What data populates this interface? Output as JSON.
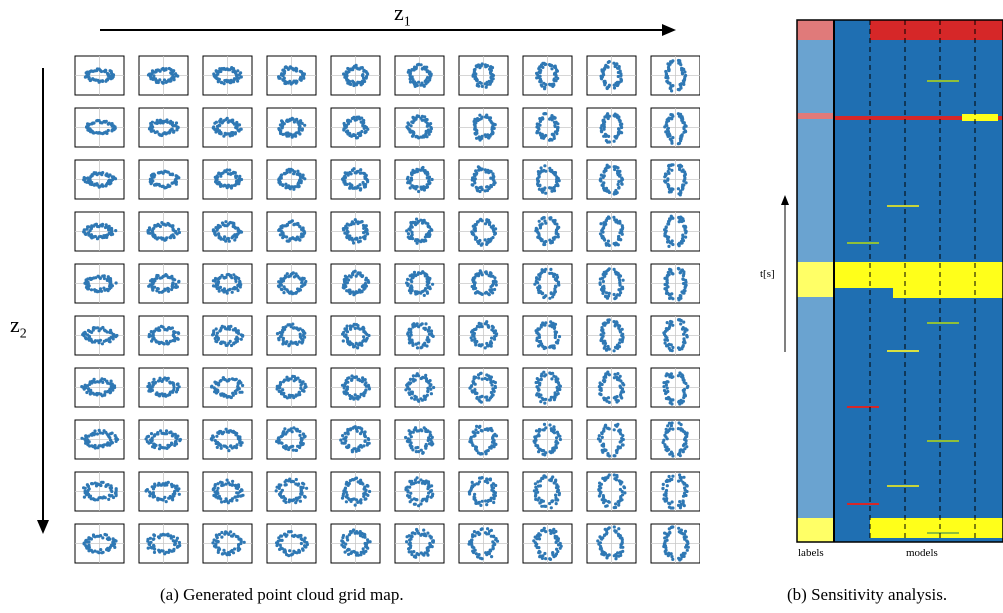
{
  "figure_a": {
    "x_axis_label": "z",
    "x_axis_sub": "1",
    "y_axis_label": "z",
    "y_axis_sub": "2",
    "grid_rows": 10,
    "grid_cols": 10,
    "caption": "(a) Generated point cloud grid map."
  },
  "figure_b": {
    "ylabel": "t[s]",
    "labels_text": "labels",
    "models_text": "models",
    "caption": "(b) Sensitivity analysis."
  },
  "colors": {
    "points": "#2f78b4",
    "cell_border": "#000000",
    "crosshair": "#c9c9c9",
    "heat_blue": "#1f6fb2",
    "heat_light_blue": "#6aa3d0",
    "heat_red": "#d62728",
    "heat_pink": "#e07a7a",
    "heat_yellow": "#ffff1a",
    "heat_light_yellow": "#ffff66"
  }
}
